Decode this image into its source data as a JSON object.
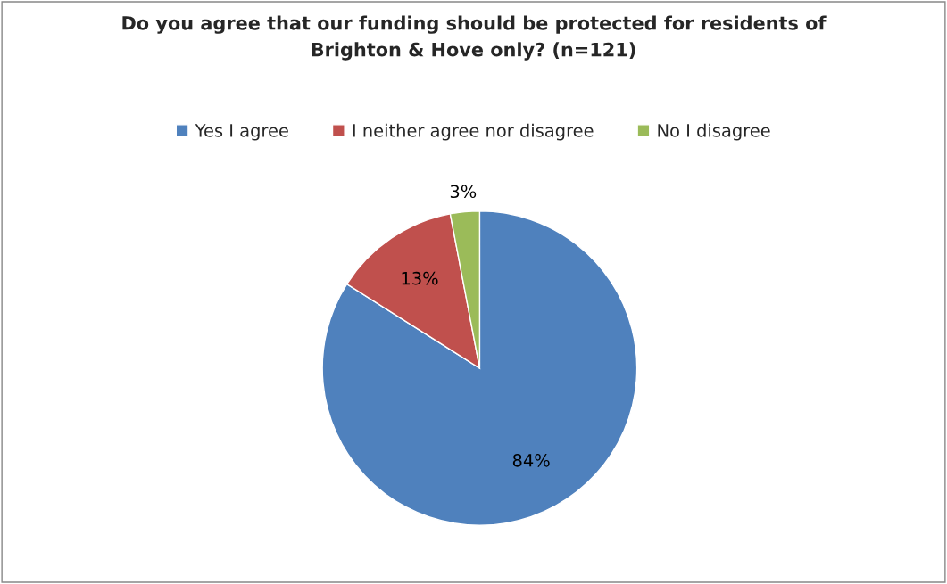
{
  "chart_data": {
    "type": "pie",
    "title": "Do you agree that our funding should be protected for residents of\nBrighton & Hove only? (n=121)",
    "categories": [
      "Yes I agree",
      "I neither agree nor disagree",
      "No I disagree"
    ],
    "values": [
      84,
      13,
      3
    ],
    "colors": [
      "#4f81bd",
      "#c0504d",
      "#9bbb59"
    ],
    "value_labels": [
      "84%",
      "13%",
      "3%"
    ],
    "legend": "top"
  }
}
